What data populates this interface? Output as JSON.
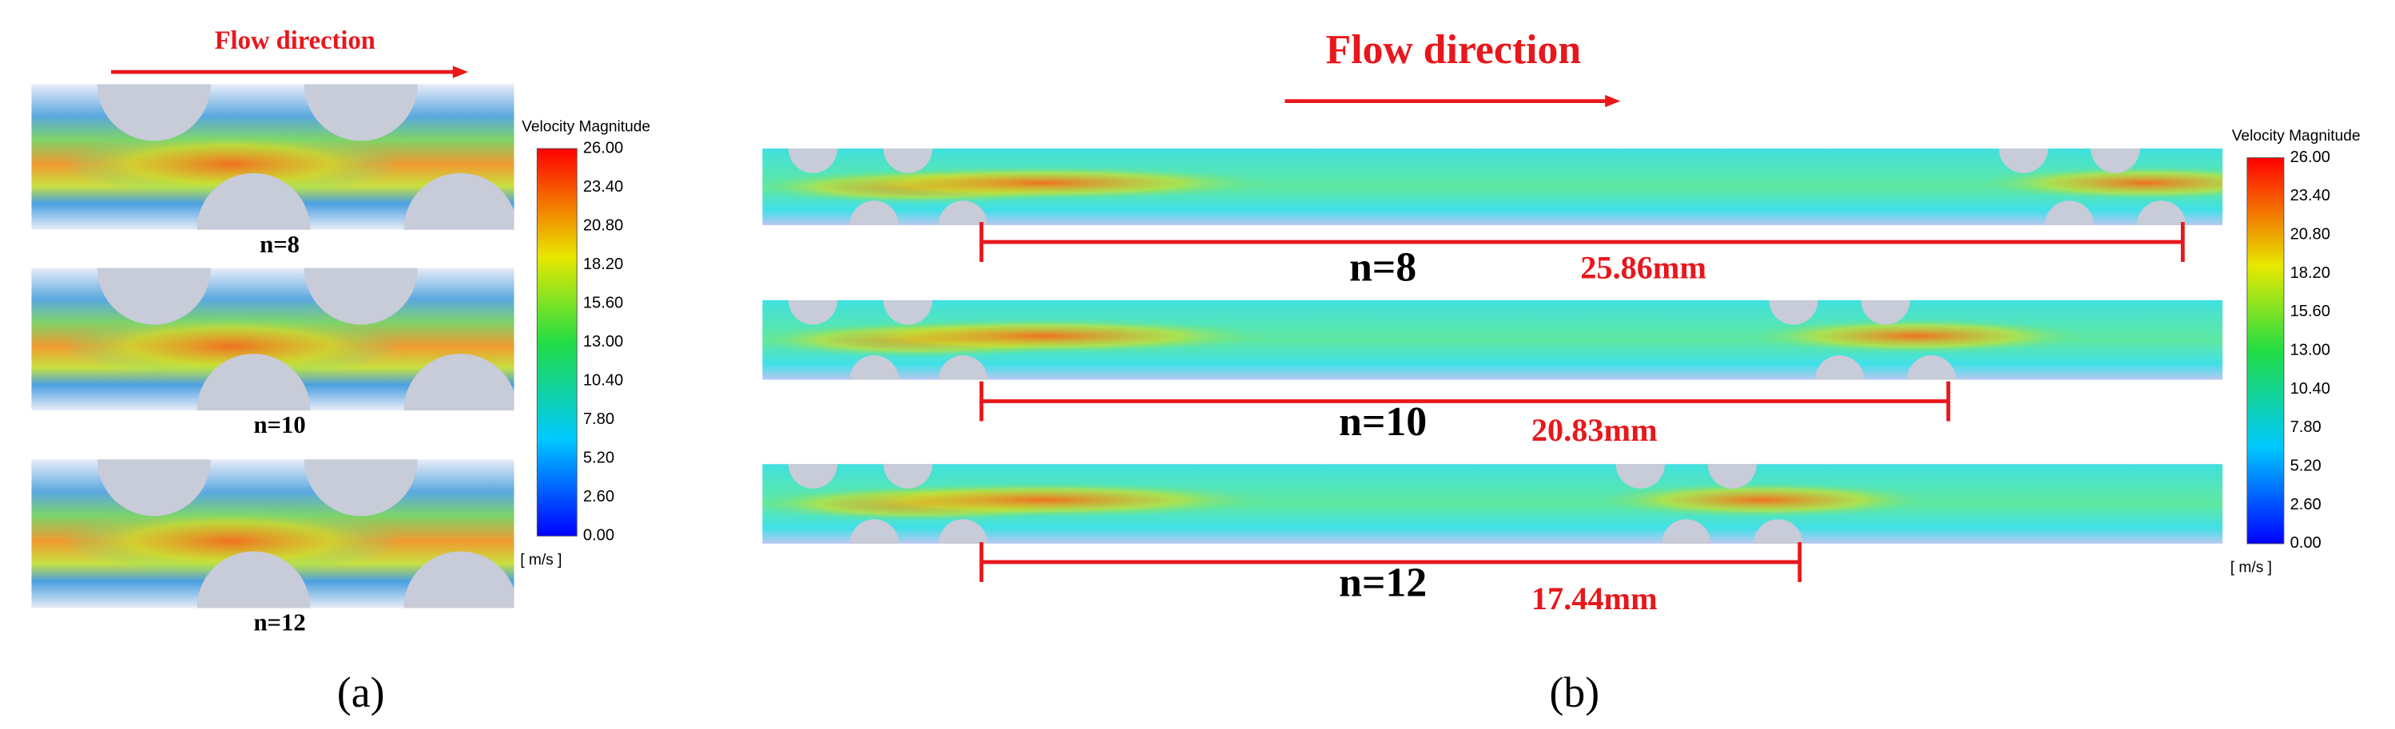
{
  "panel_a": {
    "flow_label": "Flow direction",
    "colorbar": {
      "title": "Velocity Magnitude",
      "ticks": [
        "26.00",
        "23.40",
        "20.80",
        "18.20",
        "15.60",
        "13.00",
        "10.40",
        "7.80",
        "5.20",
        "2.60",
        "0.00"
      ],
      "unit": "[ m/s ]"
    },
    "cases": [
      "n=8",
      "n=10",
      "n=12"
    ],
    "caption": "(a)"
  },
  "panel_b": {
    "flow_label": "Flow direction",
    "colorbar": {
      "title": "Velocity Magnitude",
      "ticks": [
        "26.00",
        "23.40",
        "20.80",
        "18.20",
        "15.60",
        "13.00",
        "10.40",
        "7.80",
        "5.20",
        "2.60",
        "0.00"
      ],
      "unit": "[ m/s ]"
    },
    "cases": [
      {
        "label": "n=8",
        "length": "25.86mm"
      },
      {
        "label": "n=10",
        "length": "20.83mm"
      },
      {
        "label": "n=12",
        "length": "17.44mm"
      }
    ],
    "caption": "(b)"
  }
}
